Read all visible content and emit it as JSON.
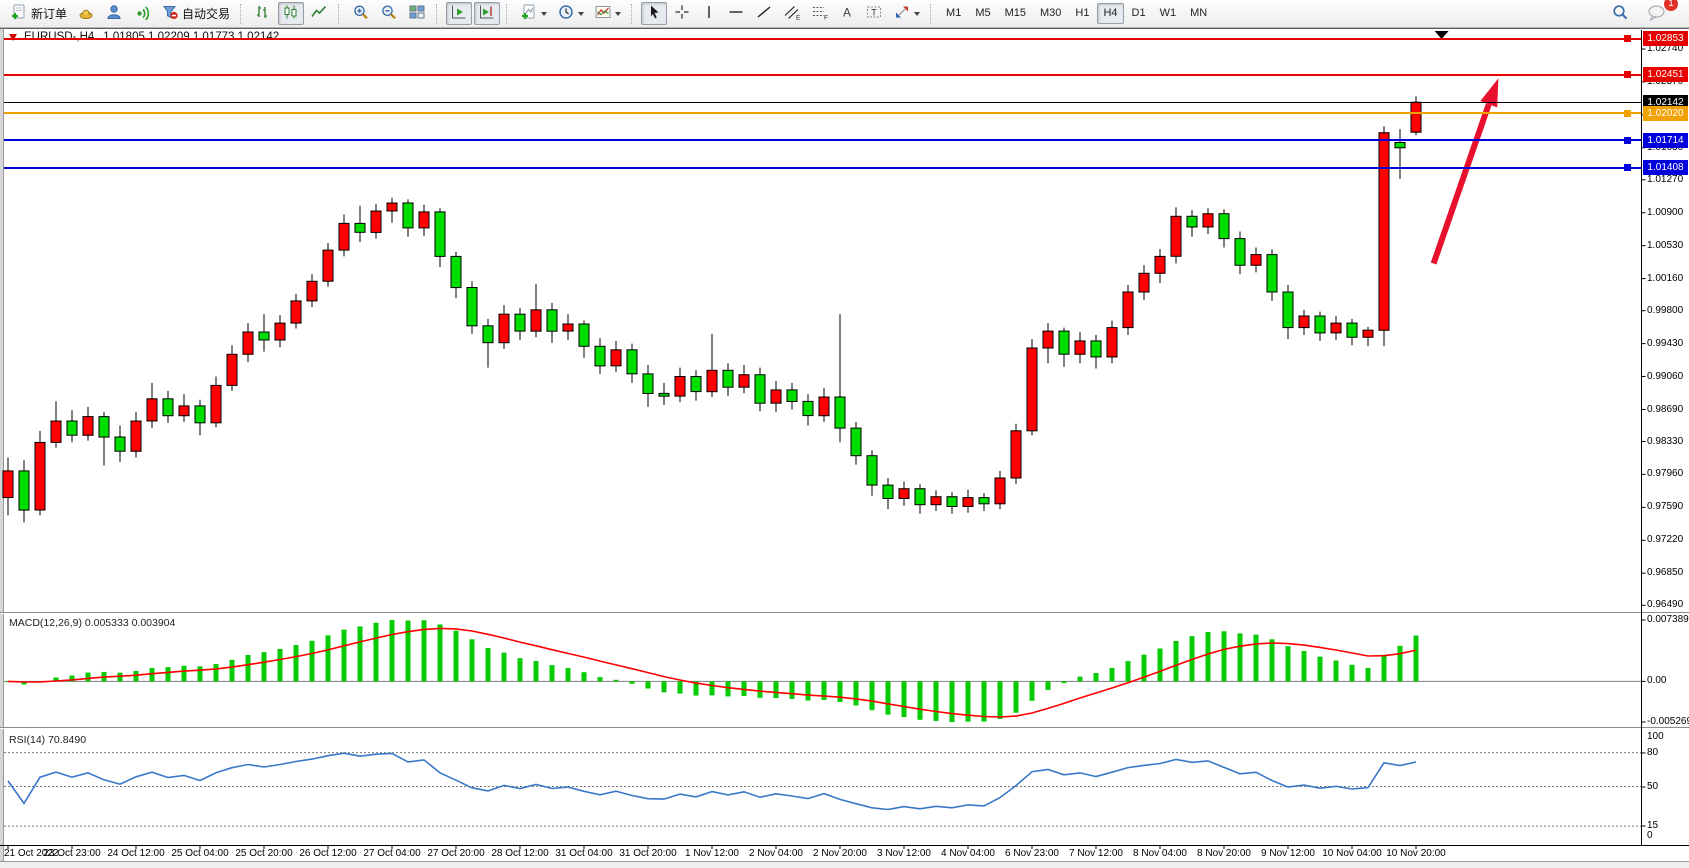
{
  "toolbar": {
    "new_order_label": "新订单",
    "auto_trading_label": "自动交易",
    "timeframes": [
      "M1",
      "M5",
      "M15",
      "M30",
      "H1",
      "H4",
      "D1",
      "W1",
      "MN"
    ],
    "active_timeframe": "H4",
    "notification_count": "1",
    "glyphs": {
      "channel_tool": "E",
      "fibonacci_tool": "F",
      "text_tool": "A",
      "label_tool": "T"
    }
  },
  "chart": {
    "symbol": "EURUSD-,H4",
    "ohlc_text": "1.01805 1.02209 1.01773 1.02142"
  },
  "indicators": {
    "macd": {
      "label": "MACD(12,26,9) 0.005333 0.003904",
      "axis_max": "0.007389",
      "axis_zero": "0.00",
      "axis_min": "-0.005269"
    },
    "rsi": {
      "label": "RSI(14) 70.8490",
      "axis_labels": [
        "100",
        "80",
        "50",
        "15",
        "0"
      ]
    }
  },
  "chart_data": {
    "type": "candlestick",
    "symbol": "EURUSD-",
    "timeframe": "H4",
    "last_candle_ohlc": {
      "open": 1.01805,
      "high": 1.02209,
      "low": 1.01773,
      "close": 1.02142
    },
    "bull_color": "#ff0000",
    "bear_color": "#00dd00",
    "price_axis_ticks": [
      "1.02740",
      "1.02370",
      "1.02000",
      "1.01630",
      "1.01270",
      "1.00900",
      "1.00530",
      "1.00160",
      "0.99800",
      "0.99430",
      "0.99060",
      "0.98690",
      "0.98330",
      "0.97960",
      "0.97590",
      "0.97220",
      "0.96850",
      "0.96490"
    ],
    "time_labels": [
      "21 Oct 2022",
      "23 Oct 23:00",
      "24 Oct 12:00",
      "25 Oct 04:00",
      "25 Oct 20:00",
      "26 Oct 12:00",
      "27 Oct 04:00",
      "27 Oct 20:00",
      "28 Oct 12:00",
      "31 Oct 04:00",
      "31 Oct 20:00",
      "1 Nov 12:00",
      "2 Nov 04:00",
      "2 Nov 20:00",
      "3 Nov 12:00",
      "4 Nov 04:00",
      "6 Nov 23:00",
      "7 Nov 12:00",
      "8 Nov 04:00",
      "8 Nov 20:00",
      "9 Nov 12:00",
      "10 Nov 04:00",
      "10 Nov 20:00"
    ],
    "horizontal_lines": [
      {
        "price": 1.02853,
        "label": "1.02853",
        "color": "#e60000",
        "width": 2,
        "anchor": true
      },
      {
        "price": 1.02451,
        "label": "1.02451",
        "color": "#e60000",
        "width": 2,
        "anchor": true
      },
      {
        "price": 1.02142,
        "label": "1.02142",
        "color": "#000000",
        "width": 1,
        "anchor": false
      },
      {
        "price": 1.0202,
        "label": "1.02020",
        "color": "#f2a200",
        "width": 2,
        "anchor": true
      },
      {
        "price": 1.01714,
        "label": "1.01714",
        "color": "#0000dd",
        "width": 2,
        "anchor": true
      },
      {
        "price": 1.01408,
        "label": "1.01408",
        "color": "#0000dd",
        "width": 2,
        "anchor": true
      }
    ],
    "trend_arrow": {
      "color": "#e8112d",
      "from": {
        "bar": 89.1,
        "price": 1.0033
      },
      "to": {
        "bar": 92.55,
        "price": 1.0212
      },
      "tip": {
        "bar": 93.15,
        "price": 1.0241
      }
    },
    "shift_marker_bar": 89.6,
    "macd": {
      "params": "12,26,9",
      "main": 0.005333,
      "signal": 0.003904,
      "histogram_color": "#00cc00",
      "signal_color": "#ff0000"
    },
    "rsi": {
      "period": 14,
      "value": 70.849,
      "levels": [
        80,
        50,
        15
      ],
      "color": "#3a78c8"
    },
    "candles": [
      [
        0.977,
        0.9815,
        0.975,
        0.98
      ],
      [
        0.98,
        0.9812,
        0.9742,
        0.9756
      ],
      [
        0.9756,
        0.9845,
        0.975,
        0.9832
      ],
      [
        0.9832,
        0.9878,
        0.9826,
        0.9856
      ],
      [
        0.9856,
        0.9868,
        0.9832,
        0.984
      ],
      [
        0.984,
        0.9872,
        0.9834,
        0.9861
      ],
      [
        0.9861,
        0.9866,
        0.9806,
        0.9838
      ],
      [
        0.9838,
        0.9851,
        0.981,
        0.9822
      ],
      [
        0.9822,
        0.9866,
        0.9815,
        0.9856
      ],
      [
        0.9856,
        0.9899,
        0.9848,
        0.9881
      ],
      [
        0.9881,
        0.989,
        0.9854,
        0.9862
      ],
      [
        0.9862,
        0.9886,
        0.9855,
        0.9873
      ],
      [
        0.9873,
        0.988,
        0.984,
        0.9854
      ],
      [
        0.9854,
        0.9906,
        0.9849,
        0.9896
      ],
      [
        0.9896,
        0.9941,
        0.989,
        0.9931
      ],
      [
        0.9931,
        0.9966,
        0.9922,
        0.9956
      ],
      [
        0.9956,
        0.9976,
        0.9934,
        0.9947
      ],
      [
        0.9947,
        0.9975,
        0.9939,
        0.9966
      ],
      [
        0.9966,
        0.9999,
        0.996,
        0.9991
      ],
      [
        0.9991,
        1.0021,
        0.9984,
        1.0013
      ],
      [
        1.0013,
        1.0056,
        1.0007,
        1.0048
      ],
      [
        1.0048,
        1.0088,
        1.0041,
        1.0078
      ],
      [
        1.0078,
        1.0098,
        1.0057,
        1.0068
      ],
      [
        1.0068,
        1.01,
        1.0061,
        1.0092
      ],
      [
        1.0092,
        1.0107,
        1.0079,
        1.0101
      ],
      [
        1.0101,
        1.0105,
        1.0063,
        1.0073
      ],
      [
        1.0073,
        1.0099,
        1.0064,
        1.0091
      ],
      [
        1.0091,
        1.0095,
        1.0029,
        1.0041
      ],
      [
        1.0041,
        1.0046,
        0.9994,
        1.0006
      ],
      [
        1.0006,
        1.0013,
        0.9954,
        0.9963
      ],
      [
        0.9963,
        0.9971,
        0.9916,
        0.9944
      ],
      [
        0.9944,
        0.9986,
        0.9937,
        0.9976
      ],
      [
        0.9976,
        0.9983,
        0.9947,
        0.9957
      ],
      [
        0.9957,
        1.001,
        0.995,
        0.9981
      ],
      [
        0.9981,
        0.9989,
        0.9944,
        0.9957
      ],
      [
        0.9957,
        0.9976,
        0.9947,
        0.9965
      ],
      [
        0.9965,
        0.9969,
        0.9927,
        0.994
      ],
      [
        0.994,
        0.9949,
        0.9909,
        0.9918
      ],
      [
        0.9918,
        0.9946,
        0.9911,
        0.9936
      ],
      [
        0.9936,
        0.9943,
        0.9899,
        0.9909
      ],
      [
        0.9909,
        0.9919,
        0.9872,
        0.9887
      ],
      [
        0.9887,
        0.9899,
        0.9874,
        0.9884
      ],
      [
        0.9884,
        0.9916,
        0.9877,
        0.9906
      ],
      [
        0.9906,
        0.9913,
        0.9879,
        0.9889
      ],
      [
        0.9889,
        0.9954,
        0.9883,
        0.9913
      ],
      [
        0.9913,
        0.9921,
        0.9884,
        0.9894
      ],
      [
        0.9894,
        0.9919,
        0.9887,
        0.9908
      ],
      [
        0.9908,
        0.9916,
        0.9867,
        0.9876
      ],
      [
        0.9876,
        0.9901,
        0.9866,
        0.9891
      ],
      [
        0.9891,
        0.9899,
        0.9869,
        0.9878
      ],
      [
        0.9878,
        0.9886,
        0.9851,
        0.9862
      ],
      [
        0.9862,
        0.9893,
        0.9855,
        0.9883
      ],
      [
        0.9883,
        0.9976,
        0.9832,
        0.9848
      ],
      [
        0.9848,
        0.9855,
        0.9807,
        0.9817
      ],
      [
        0.9817,
        0.9823,
        0.9772,
        0.9784
      ],
      [
        0.9784,
        0.9792,
        0.9757,
        0.9769
      ],
      [
        0.9769,
        0.9788,
        0.9761,
        0.978
      ],
      [
        0.978,
        0.9785,
        0.9752,
        0.9762
      ],
      [
        0.9762,
        0.9778,
        0.9755,
        0.9771
      ],
      [
        0.9771,
        0.9776,
        0.9752,
        0.976
      ],
      [
        0.976,
        0.9779,
        0.9753,
        0.977
      ],
      [
        0.977,
        0.9775,
        0.9755,
        0.9763
      ],
      [
        0.9763,
        0.98,
        0.9757,
        0.9792
      ],
      [
        0.9792,
        0.9853,
        0.9785,
        0.9845
      ],
      [
        0.9845,
        0.9948,
        0.984,
        0.9938
      ],
      [
        0.9938,
        0.9966,
        0.9921,
        0.9957
      ],
      [
        0.9957,
        0.9961,
        0.9917,
        0.9931
      ],
      [
        0.9931,
        0.9956,
        0.9921,
        0.9946
      ],
      [
        0.9946,
        0.9953,
        0.9915,
        0.9928
      ],
      [
        0.9928,
        0.9969,
        0.9921,
        0.9961
      ],
      [
        0.9961,
        1.0009,
        0.9953,
        1.0001
      ],
      [
        1.0001,
        1.0031,
        0.9992,
        1.0022
      ],
      [
        1.0022,
        1.0049,
        1.0011,
        1.0041
      ],
      [
        1.0041,
        1.0096,
        1.0033,
        1.0086
      ],
      [
        1.0086,
        1.0093,
        1.0063,
        1.0074
      ],
      [
        1.0074,
        1.0095,
        1.0066,
        1.0089
      ],
      [
        1.0089,
        1.0094,
        1.0051,
        1.0061
      ],
      [
        1.0061,
        1.0069,
        1.0021,
        1.0031
      ],
      [
        1.0031,
        1.0051,
        1.0023,
        1.0043
      ],
      [
        1.0043,
        1.0049,
        0.9991,
        1.0001
      ],
      [
        1.0001,
        1.0009,
        0.9948,
        0.9961
      ],
      [
        0.9961,
        0.9981,
        0.9953,
        0.9974
      ],
      [
        0.9974,
        0.9979,
        0.9946,
        0.9955
      ],
      [
        0.9955,
        0.9974,
        0.9947,
        0.9966
      ],
      [
        0.9966,
        0.9971,
        0.9941,
        0.995
      ],
      [
        0.995,
        0.9962,
        0.994,
        0.9958
      ],
      [
        0.9958,
        1.0187,
        0.994,
        1.018
      ],
      [
        1.0169,
        1.0184,
        1.0128,
        1.0163
      ],
      [
        1.01805,
        1.02209,
        1.01773,
        1.02142
      ]
    ]
  }
}
